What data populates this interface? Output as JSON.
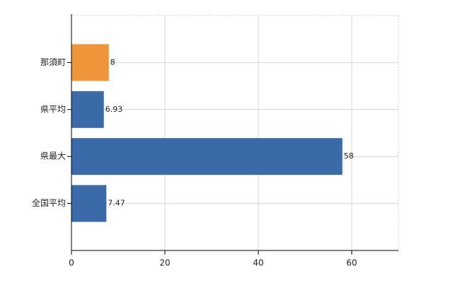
{
  "chart_data": {
    "type": "hbar",
    "categories": [
      "那須町",
      "県平均",
      "県最大",
      "全国平均"
    ],
    "values": [
      8,
      6.93,
      58,
      7.47
    ],
    "colors": [
      "#f0963a",
      "#3a6aa8",
      "#3a6aa8",
      "#3a6aa8"
    ],
    "xlim": [
      0,
      70
    ],
    "xticks": [
      0,
      20,
      40,
      60
    ],
    "grid": true
  }
}
